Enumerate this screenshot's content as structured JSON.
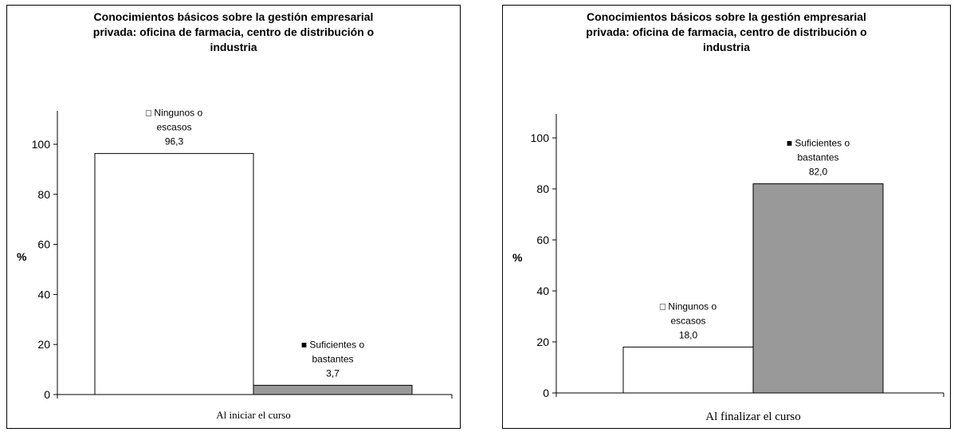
{
  "chart_data": [
    {
      "type": "bar",
      "title_lines": [
        "Conocimientos básicos sobre la gestión empresarial",
        "privada: oficina de farmacia, centro de distribución o",
        "industria"
      ],
      "ylabel": "%",
      "xlabel": "",
      "categories": [
        "Al iniciar el curso"
      ],
      "series": [
        {
          "name_lines": [
            "Ningunos o",
            "escasos"
          ],
          "values": [
            96.3
          ],
          "value_label": "96,3",
          "color": "#ffffff",
          "marker": "□"
        },
        {
          "name_lines": [
            "Suficientes o",
            "bastantes"
          ],
          "values": [
            3.7
          ],
          "value_label": "3,7",
          "color": "#999999",
          "marker": "■"
        }
      ],
      "ylim": [
        0,
        100
      ],
      "yticks": [
        "0",
        "20",
        "40",
        "60",
        "80",
        "100"
      ],
      "grid": false
    },
    {
      "type": "bar",
      "title_lines": [
        "Conocimientos básicos sobre la gestión empresarial",
        "privada: oficina de farmacia, centro de distribución o",
        "industria"
      ],
      "ylabel": "%",
      "xlabel": "",
      "categories": [
        "Al finalizar el curso"
      ],
      "series": [
        {
          "name_lines": [
            "Ningunos o",
            "escasos"
          ],
          "values": [
            18.0
          ],
          "value_label": "18,0",
          "color": "#ffffff",
          "marker": "□"
        },
        {
          "name_lines": [
            "Suficientes o",
            "bastantes"
          ],
          "values": [
            82.0
          ],
          "value_label": "82,0",
          "color": "#999999",
          "marker": "■"
        }
      ],
      "ylim": [
        0,
        100
      ],
      "yticks": [
        "0",
        "20",
        "40",
        "60",
        "80",
        "100"
      ],
      "grid": false
    }
  ]
}
